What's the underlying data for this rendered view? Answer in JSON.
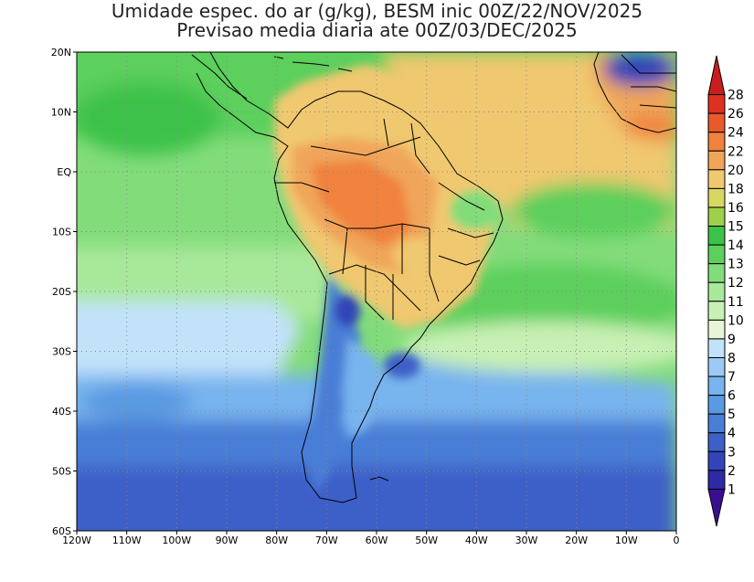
{
  "title": {
    "line1": "Umidade espec. do ar (g/kg), BESM inic 00Z/22/NOV/2025",
    "line2": "Previsao media diaria ate 00Z/03/DEC/2025"
  },
  "map": {
    "lon_range": [
      -120,
      0
    ],
    "lat_range": [
      -60,
      20
    ],
    "lon_ticks": [
      {
        "v": -120,
        "label": "120W"
      },
      {
        "v": -110,
        "label": "110W"
      },
      {
        "v": -100,
        "label": "100W"
      },
      {
        "v": -90,
        "label": "90W"
      },
      {
        "v": -80,
        "label": "80W"
      },
      {
        "v": -70,
        "label": "70W"
      },
      {
        "v": -60,
        "label": "60W"
      },
      {
        "v": -50,
        "label": "50W"
      },
      {
        "v": -40,
        "label": "40W"
      },
      {
        "v": -30,
        "label": "30W"
      },
      {
        "v": -20,
        "label": "20W"
      },
      {
        "v": -10,
        "label": "10W"
      },
      {
        "v": 0,
        "label": "0"
      }
    ],
    "lat_ticks": [
      {
        "v": 20,
        "label": "20N"
      },
      {
        "v": 10,
        "label": "10N"
      },
      {
        "v": 0,
        "label": "EQ"
      },
      {
        "v": -10,
        "label": "10S"
      },
      {
        "v": -20,
        "label": "20S"
      },
      {
        "v": -30,
        "label": "30S"
      },
      {
        "v": -40,
        "label": "40S"
      },
      {
        "v": -50,
        "label": "50S"
      },
      {
        "v": -60,
        "label": "60S"
      }
    ],
    "grid": "dotted"
  },
  "colorbar": {
    "levels": [
      "1",
      "2",
      "3",
      "4",
      "5",
      "6",
      "7",
      "8",
      "9",
      "10",
      "11",
      "12",
      "13",
      "14",
      "15",
      "16",
      "18",
      "20",
      "22",
      "24",
      "26",
      "28"
    ],
    "colors": [
      "#3a0f8f",
      "#2e2aa6",
      "#3344b8",
      "#3c5fc8",
      "#4a7ed6",
      "#5a9ae2",
      "#78b4ee",
      "#9ccaf5",
      "#c2e2fa",
      "#e8f6d8",
      "#c8f0b4",
      "#a8e89a",
      "#82dc7a",
      "#5ccf5c",
      "#3cc24a",
      "#9ed04a",
      "#d8d860",
      "#f0c870",
      "#f0a65a",
      "#f0823c",
      "#e85a2a",
      "#dc3222",
      "#c81e1e"
    ]
  }
}
